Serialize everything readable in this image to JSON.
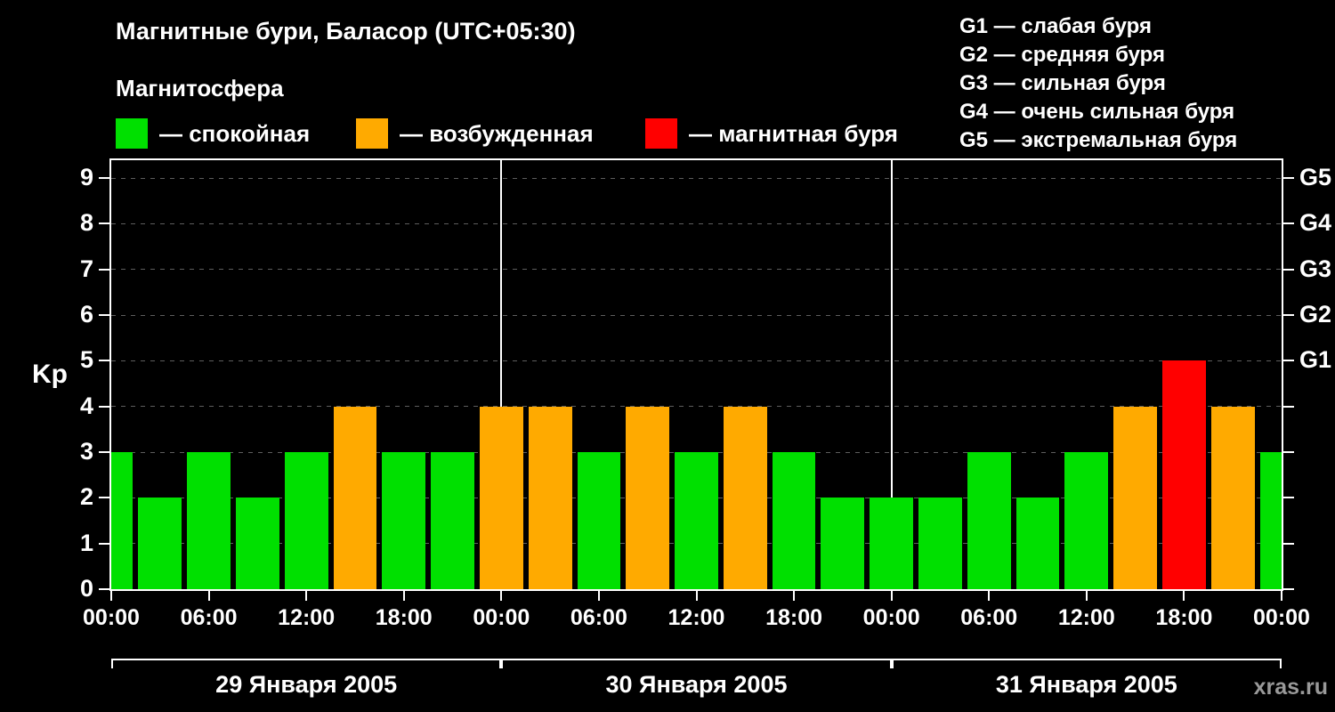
{
  "title": "Магнитные бури, Баласор (UTC+05:30)",
  "watermark": "xras.ru",
  "magnetosphere": {
    "title": "Магнитосфера",
    "items": [
      {
        "label": "— спокойная",
        "color": "#00e000"
      },
      {
        "label": "— возбужденная",
        "color": "#ffaa00"
      },
      {
        "label": "— магнитная буря",
        "color": "#ff0000"
      }
    ]
  },
  "storm_scale": [
    {
      "text": "G1 — слабая буря"
    },
    {
      "text": "G2 — средняя буря"
    },
    {
      "text": "G3 — сильная буря"
    },
    {
      "text": "G4 — очень сильная буря"
    },
    {
      "text": "G5 — экстремальная буря"
    }
  ],
  "chart_data": {
    "type": "bar",
    "title": "Магнитные бури, Баласор (UTC+05:30)",
    "ylabel": "Kp",
    "xlabel": "",
    "ylim": [
      0,
      9
    ],
    "yticks": [
      0,
      1,
      2,
      3,
      4,
      5,
      6,
      7,
      8,
      9
    ],
    "grid": "dashed horizontal gray",
    "legend_position": "top-left",
    "total_hours": 72,
    "interval_hours": 3,
    "bar_offset_hours": -1.5,
    "x_tick_hours": [
      0,
      6,
      12,
      18,
      24,
      30,
      36,
      42,
      48,
      54,
      60,
      66,
      72
    ],
    "x_tick_labels": [
      "00:00",
      "06:00",
      "12:00",
      "18:00",
      "00:00",
      "06:00",
      "12:00",
      "18:00",
      "00:00",
      "06:00",
      "12:00",
      "18:00",
      "00:00"
    ],
    "day_boundaries_hours": [
      24,
      48
    ],
    "days": [
      {
        "label": "29 Января 2005",
        "start_h": 0,
        "end_h": 24
      },
      {
        "label": "30 Января 2005",
        "start_h": 24,
        "end_h": 48
      },
      {
        "label": "31 Января 2005",
        "start_h": 48,
        "end_h": 72
      }
    ],
    "kp_values": [
      3,
      2,
      3,
      2,
      3,
      4,
      3,
      3,
      4,
      4,
      3,
      4,
      3,
      4,
      3,
      2,
      2,
      2,
      3,
      2,
      3,
      4,
      5,
      4,
      3
    ],
    "colors": {
      "quiet": "#00e000",
      "excited": "#ffaa00",
      "storm": "#ff0000"
    },
    "color_rule": {
      "quiet_max": 3,
      "excited_max": 4
    },
    "right_axis": [
      {
        "kp": 5,
        "label": "G1"
      },
      {
        "kp": 6,
        "label": "G2"
      },
      {
        "kp": 7,
        "label": "G3"
      },
      {
        "kp": 8,
        "label": "G4"
      },
      {
        "kp": 9,
        "label": "G5"
      }
    ]
  }
}
